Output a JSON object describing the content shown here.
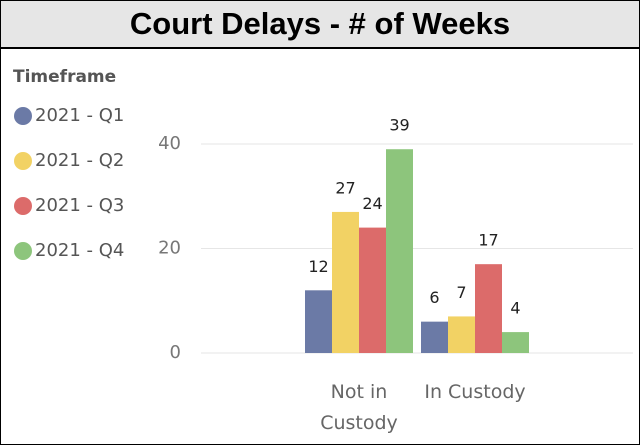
{
  "chart_data": {
    "type": "bar",
    "title": "Court Delays - # of Weeks",
    "legend_title": "Timeframe",
    "categories": [
      "Not in Custody",
      "In Custody"
    ],
    "series": [
      {
        "name": "2021 - Q1",
        "color": "#6b7aa6",
        "values": [
          12,
          6
        ]
      },
      {
        "name": "2021 - Q2",
        "color": "#f2d264",
        "values": [
          27,
          7
        ]
      },
      {
        "name": "2021 - Q3",
        "color": "#dc6b6a",
        "values": [
          24,
          17
        ]
      },
      {
        "name": "2021 - Q4",
        "color": "#8dc57c",
        "values": [
          39,
          4
        ]
      }
    ],
    "ylim": [
      0,
      40
    ],
    "yticks": [
      0,
      20,
      40
    ],
    "grid": true,
    "legend": "left"
  }
}
